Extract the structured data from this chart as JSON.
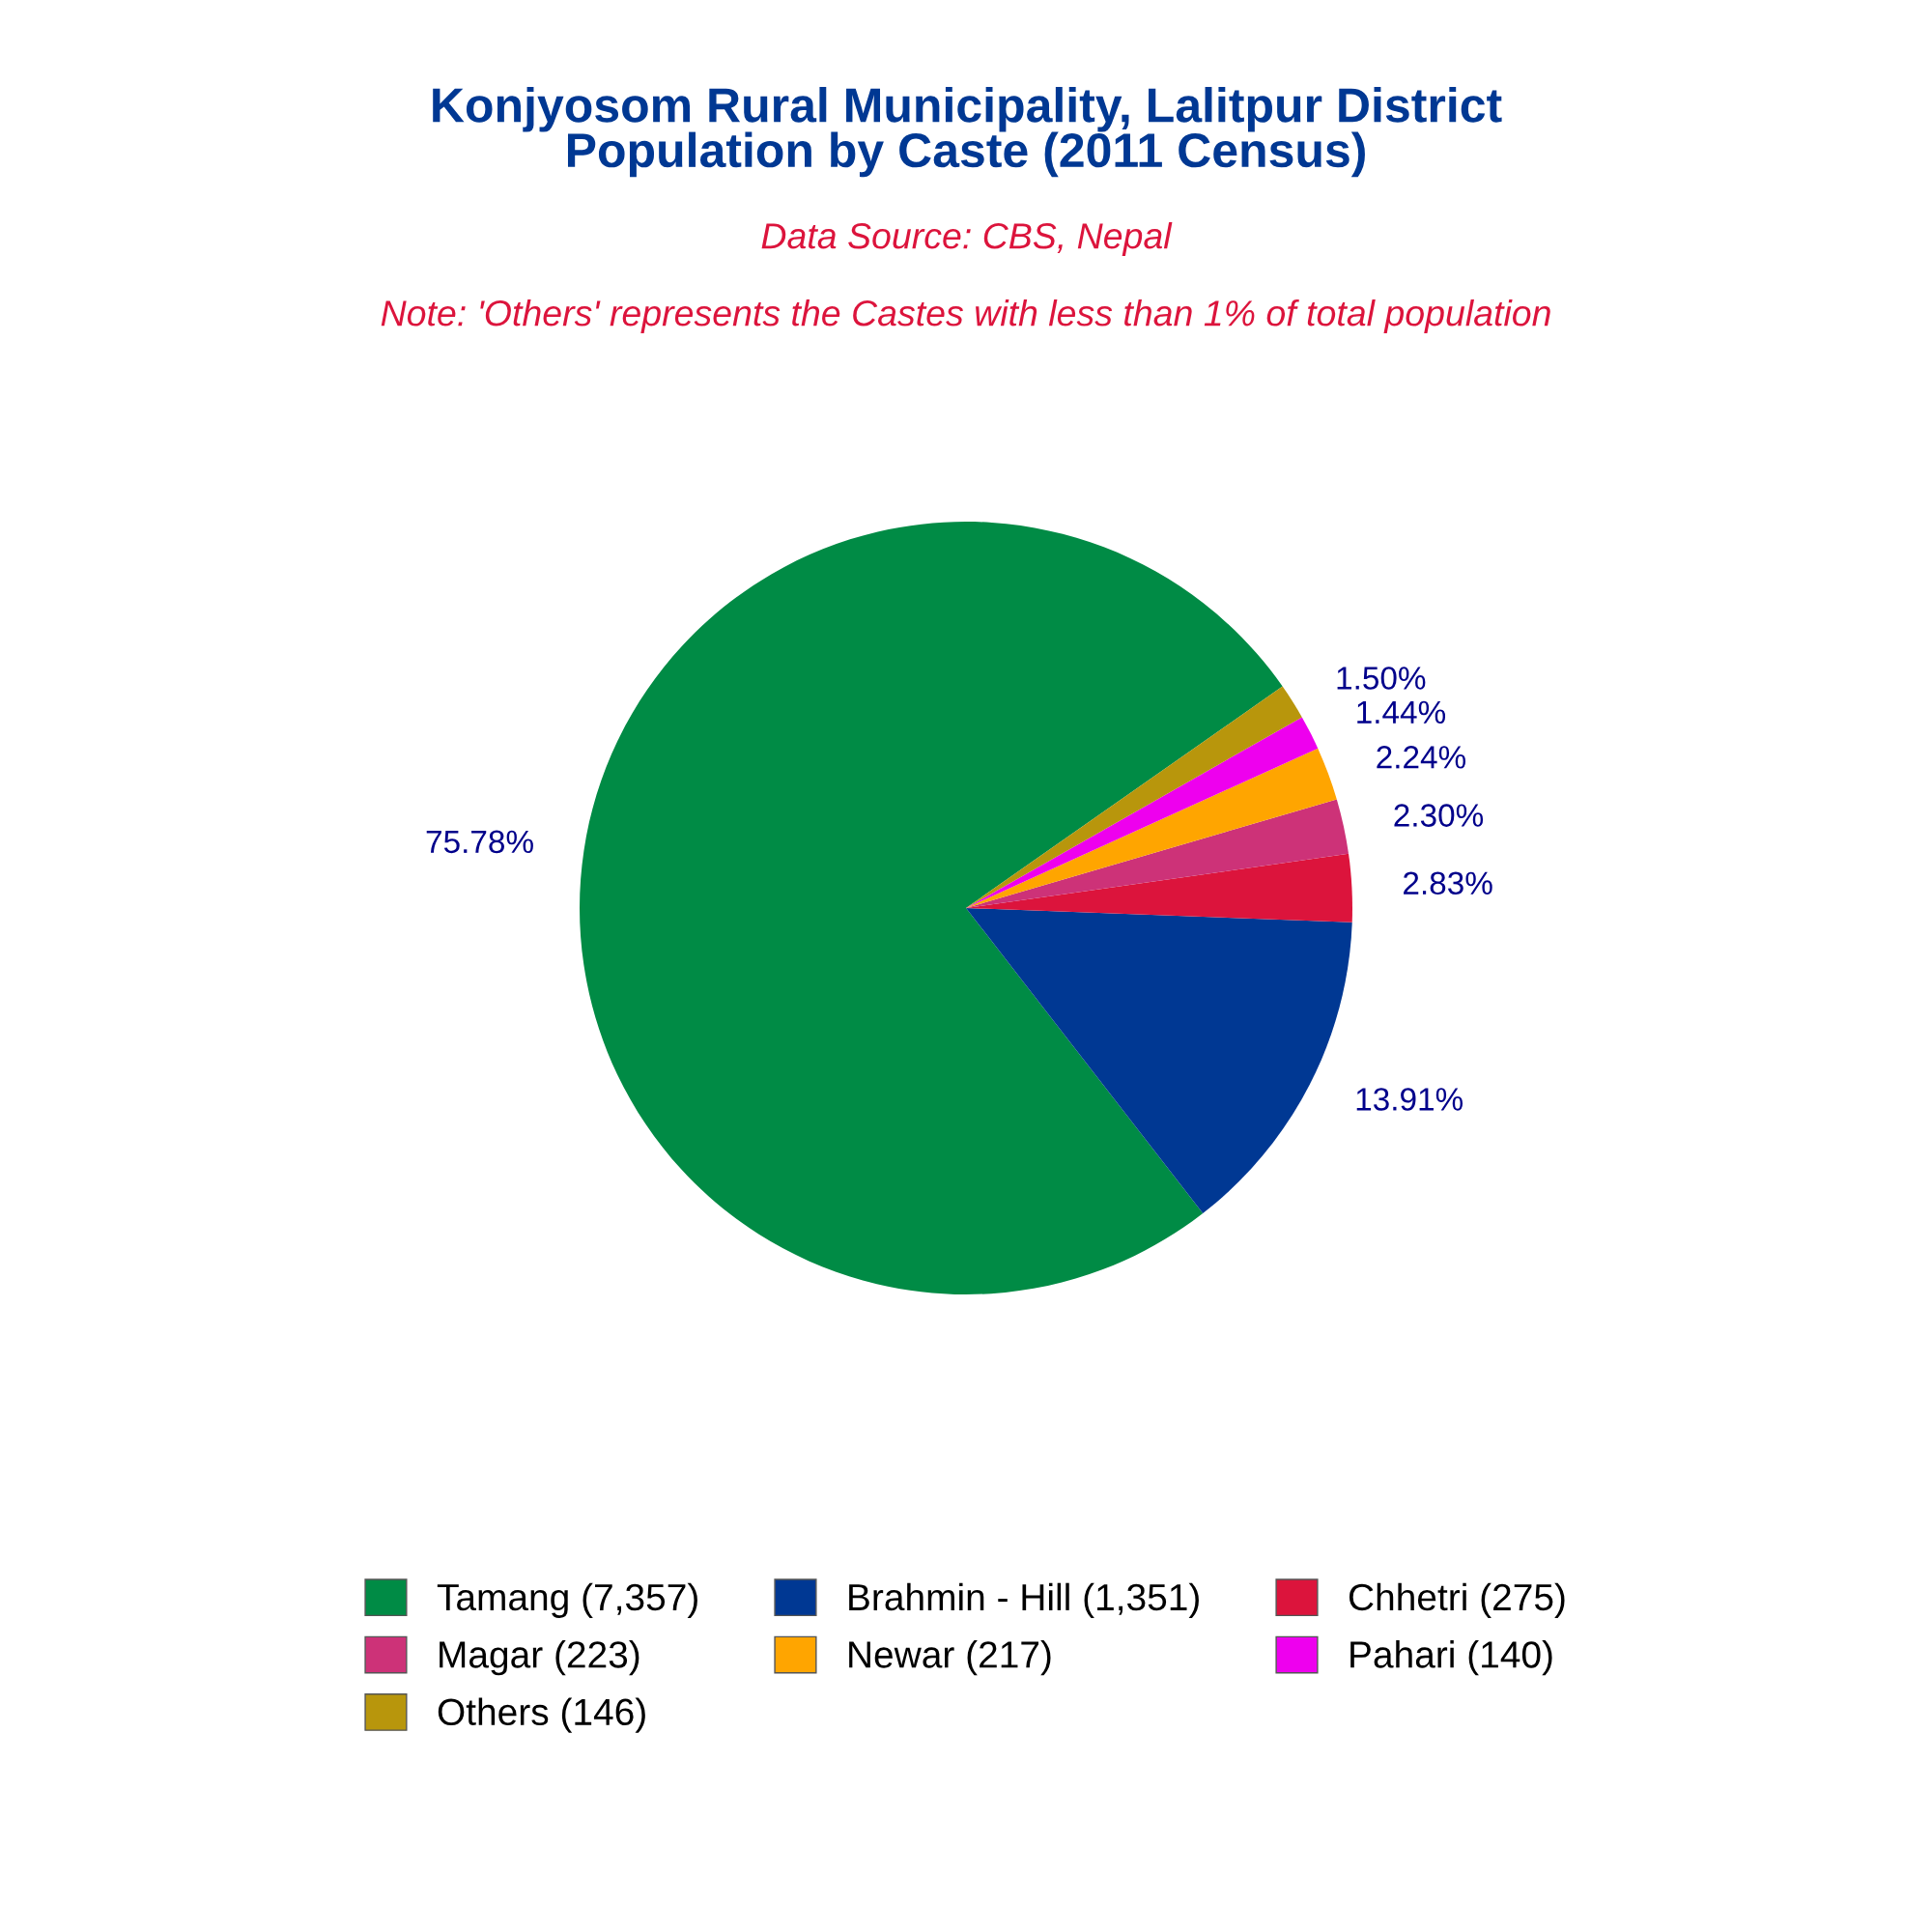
{
  "chart_data": {
    "type": "pie",
    "title": "Konjyosom Rural Municipality, Lalitpur District\nPopulation by Caste (2011 Census)",
    "subtitle": "Data Source: CBS, Nepal",
    "annotations": [
      "Note: 'Others' represents the Castes with less than 1% of total population"
    ],
    "categories": [
      "Tamang (7,357)",
      "Brahmin - Hill (1,351)",
      "Chhetri (275)",
      "Magar (223)",
      "Newar (217)",
      "Pahari (140)",
      "Others (146)"
    ],
    "values": [
      75.78,
      13.91,
      2.83,
      2.3,
      2.24,
      1.44,
      1.5
    ],
    "colors": [
      "#008b45",
      "#003893",
      "#dc143c",
      "#cd3278",
      "#ffa500",
      "#ee00ee",
      "#b8960c"
    ],
    "value_labels": [
      "75.78%",
      "13.91%",
      "2.83%",
      "2.30%",
      "2.24%",
      "1.44%",
      "1.50%"
    ],
    "legend": "bottom"
  }
}
